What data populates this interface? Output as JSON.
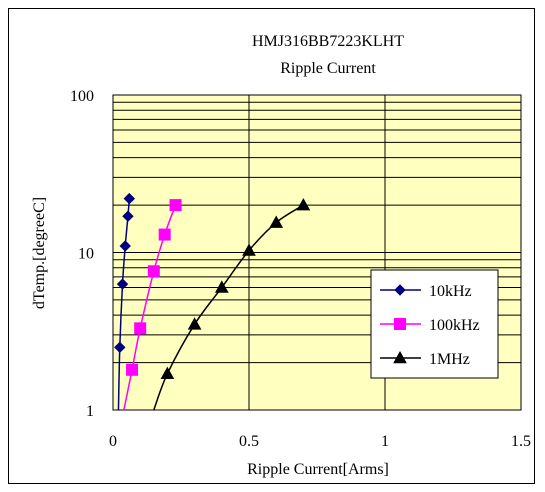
{
  "chart_data": {
    "type": "line",
    "title": "HMJ316BB7223KLHT",
    "subtitle": "Ripple Current",
    "xlabel": "Ripple Current[Arms]",
    "ylabel": "dTemp.[degreeC]",
    "xlim": [
      0,
      1.5
    ],
    "ylim": [
      1,
      100
    ],
    "yscale": "log",
    "x_ticks": [
      "0",
      "0.5",
      "1",
      "1.5"
    ],
    "y_ticks": [
      "1",
      "10",
      "100"
    ],
    "grid": true,
    "plot_background": "#ffffc0",
    "legend_position": "right",
    "series": [
      {
        "name": "10kHz",
        "color": "#000080",
        "marker": "diamond",
        "points": [
          [
            0.02,
            1
          ],
          [
            0.025,
            2.5
          ],
          [
            0.035,
            6.3
          ],
          [
            0.045,
            11
          ],
          [
            0.055,
            17
          ],
          [
            0.06,
            22
          ]
        ],
        "marked_points": [
          [
            0.025,
            2.5
          ],
          [
            0.035,
            6.3
          ],
          [
            0.045,
            11
          ],
          [
            0.055,
            17
          ],
          [
            0.06,
            22
          ]
        ]
      },
      {
        "name": "100kHz",
        "color": "#ff00ff",
        "marker": "square",
        "points": [
          [
            0.04,
            1
          ],
          [
            0.07,
            1.8
          ],
          [
            0.1,
            3.3
          ],
          [
            0.15,
            7.6
          ],
          [
            0.19,
            13
          ],
          [
            0.23,
            20
          ]
        ],
        "marked_points": [
          [
            0.07,
            1.8
          ],
          [
            0.1,
            3.3
          ],
          [
            0.15,
            7.6
          ],
          [
            0.19,
            13
          ],
          [
            0.23,
            20
          ]
        ]
      },
      {
        "name": "1MHz",
        "color": "#000000",
        "marker": "triangle",
        "points": [
          [
            0.15,
            1
          ],
          [
            0.2,
            1.7
          ],
          [
            0.3,
            3.5
          ],
          [
            0.4,
            6
          ],
          [
            0.5,
            10.3
          ],
          [
            0.6,
            15.5
          ],
          [
            0.7,
            20
          ]
        ],
        "marked_points": [
          [
            0.2,
            1.7
          ],
          [
            0.3,
            3.5
          ],
          [
            0.4,
            6
          ],
          [
            0.5,
            10.3
          ],
          [
            0.6,
            15.5
          ],
          [
            0.7,
            20
          ]
        ]
      }
    ]
  }
}
